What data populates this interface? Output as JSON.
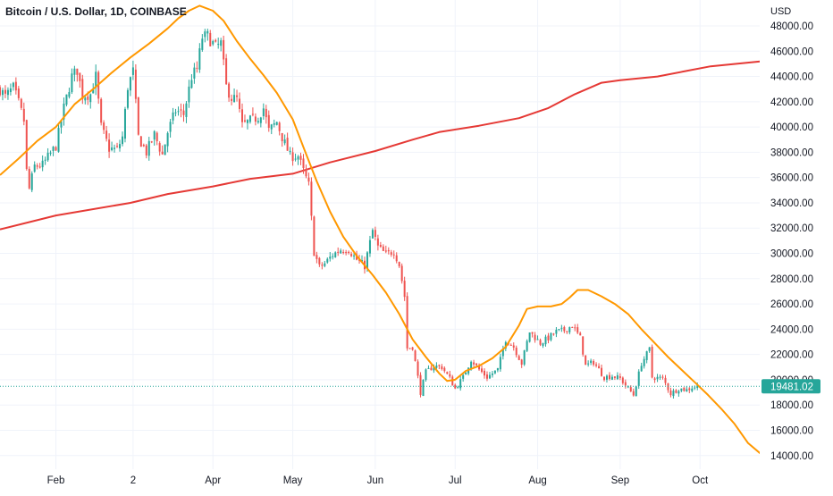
{
  "header": {
    "symbol_line": "Bitcoin / U.S. Dollar, 1D, COINBASE"
  },
  "price_axis": {
    "currency_label": "USD",
    "last_price_label": "19481.02"
  },
  "colors": {
    "up": "#26a69a",
    "down": "#ef5350",
    "ma_fast": "#ff9800",
    "ma_slow": "#e53935",
    "last_price_bg": "#26a69a",
    "grid": "#f0f3fa",
    "text": "#131722"
  },
  "chart_data": {
    "type": "candlestick",
    "symbol": "BTCUSD",
    "interval": "1D",
    "exchange": "COINBASE",
    "x_range": [
      "2022-01-11",
      "2022-10-24"
    ],
    "y_range": [
      13000,
      49500
    ],
    "last_price": 19481.02,
    "y_ticks": [
      14000,
      16000,
      18000,
      20000,
      22000,
      24000,
      26000,
      28000,
      30000,
      32000,
      34000,
      36000,
      38000,
      40000,
      42000,
      44000,
      46000,
      48000
    ],
    "x_ticks": [
      {
        "label": "Feb",
        "date": "2022-02-01"
      },
      {
        "label": "2",
        "date": "2022-03-02"
      },
      {
        "label": "Apr",
        "date": "2022-04-01"
      },
      {
        "label": "May",
        "date": "2022-05-01"
      },
      {
        "label": "Jun",
        "date": "2022-06-01"
      },
      {
        "label": "Jul",
        "date": "2022-07-01"
      },
      {
        "label": "Aug",
        "date": "2022-08-01"
      },
      {
        "label": "Sep",
        "date": "2022-09-01"
      },
      {
        "label": "Oct",
        "date": "2022-10-01"
      }
    ],
    "close_path": [
      [
        "2022-01-11",
        43000
      ],
      [
        "2022-01-13",
        42400
      ],
      [
        "2022-01-16",
        43100
      ],
      [
        "2022-01-18",
        41900
      ],
      [
        "2022-01-20",
        40500
      ],
      [
        "2022-01-21",
        36500
      ],
      [
        "2022-01-22",
        35100
      ],
      [
        "2022-01-24",
        36900
      ],
      [
        "2022-01-27",
        37000
      ],
      [
        "2022-01-30",
        37900
      ],
      [
        "2022-02-01",
        38500
      ],
      [
        "2022-02-04",
        41500
      ],
      [
        "2022-02-07",
        44000
      ],
      [
        "2022-02-09",
        44500
      ],
      [
        "2022-02-11",
        42500
      ],
      [
        "2022-02-14",
        42600
      ],
      [
        "2022-02-16",
        44000
      ],
      [
        "2022-02-18",
        40000
      ],
      [
        "2022-02-21",
        38300
      ],
      [
        "2022-02-24",
        38200
      ],
      [
        "2022-02-26",
        39200
      ],
      [
        "2022-02-28",
        43200
      ],
      [
        "2022-03-02",
        44400
      ],
      [
        "2022-03-04",
        39200
      ],
      [
        "2022-03-07",
        38000
      ],
      [
        "2022-03-10",
        39400
      ],
      [
        "2022-03-13",
        37800
      ],
      [
        "2022-03-15",
        39600
      ],
      [
        "2022-03-18",
        41300
      ],
      [
        "2022-03-21",
        41000
      ],
      [
        "2022-03-24",
        44000
      ],
      [
        "2022-03-26",
        44600
      ],
      [
        "2022-03-28",
        47100
      ],
      [
        "2022-03-30",
        47200
      ],
      [
        "2022-04-02",
        46300
      ],
      [
        "2022-04-04",
        46600
      ],
      [
        "2022-04-06",
        43200
      ],
      [
        "2022-04-08",
        42300
      ],
      [
        "2022-04-10",
        42200
      ],
      [
        "2022-04-12",
        40100
      ],
      [
        "2022-04-15",
        40500
      ],
      [
        "2022-04-18",
        40800
      ],
      [
        "2022-04-20",
        41500
      ],
      [
        "2022-04-22",
        39700
      ],
      [
        "2022-04-25",
        40400
      ],
      [
        "2022-04-27",
        39200
      ],
      [
        "2022-04-30",
        37700
      ],
      [
        "2022-05-03",
        37700
      ],
      [
        "2022-05-05",
        36500
      ],
      [
        "2022-05-07",
        35400
      ],
      [
        "2022-05-09",
        30100
      ],
      [
        "2022-05-11",
        28900
      ],
      [
        "2022-05-13",
        29200
      ],
      [
        "2022-05-16",
        29900
      ],
      [
        "2022-05-19",
        30300
      ],
      [
        "2022-05-22",
        30300
      ],
      [
        "2022-05-25",
        29500
      ],
      [
        "2022-05-28",
        29000
      ],
      [
        "2022-05-31",
        31800
      ],
      [
        "2022-06-02",
        30500
      ],
      [
        "2022-06-05",
        29900
      ],
      [
        "2022-06-08",
        30200
      ],
      [
        "2022-06-10",
        29100
      ],
      [
        "2022-06-12",
        26600
      ],
      [
        "2022-06-13",
        22500
      ],
      [
        "2022-06-15",
        22600
      ],
      [
        "2022-06-18",
        19000
      ],
      [
        "2022-06-20",
        20600
      ],
      [
        "2022-06-23",
        21100
      ],
      [
        "2022-06-26",
        21000
      ],
      [
        "2022-06-29",
        20100
      ],
      [
        "2022-07-01",
        19300
      ],
      [
        "2022-07-04",
        20200
      ],
      [
        "2022-07-07",
        21600
      ],
      [
        "2022-07-10",
        20800
      ],
      [
        "2022-07-13",
        20200
      ],
      [
        "2022-07-17",
        20800
      ],
      [
        "2022-07-20",
        23200
      ],
      [
        "2022-07-23",
        22600
      ],
      [
        "2022-07-26",
        21300
      ],
      [
        "2022-07-29",
        23800
      ],
      [
        "2022-08-02",
        22900
      ],
      [
        "2022-08-05",
        23300
      ],
      [
        "2022-08-08",
        23800
      ],
      [
        "2022-08-11",
        23900
      ],
      [
        "2022-08-14",
        24300
      ],
      [
        "2022-08-17",
        23300
      ],
      [
        "2022-08-19",
        21100
      ],
      [
        "2022-08-22",
        21400
      ],
      [
        "2022-08-26",
        20200
      ],
      [
        "2022-08-29",
        20300
      ],
      [
        "2022-09-01",
        20100
      ],
      [
        "2022-09-06",
        18800
      ],
      [
        "2022-09-09",
        21300
      ],
      [
        "2022-09-12",
        22400
      ],
      [
        "2022-09-13",
        20200
      ],
      [
        "2022-09-17",
        20100
      ],
      [
        "2022-09-20",
        18900
      ],
      [
        "2022-09-23",
        19300
      ],
      [
        "2022-09-26",
        19200
      ],
      [
        "2022-09-28",
        19400
      ],
      [
        "2022-09-30",
        19481
      ]
    ],
    "series": [
      {
        "type": "line",
        "points": [
          [
            "2022-01-11",
            36200
          ],
          [
            "2022-01-18",
            37500
          ],
          [
            "2022-01-25",
            38900
          ],
          [
            "2022-02-01",
            40000
          ],
          [
            "2022-02-08",
            41800
          ],
          [
            "2022-02-15",
            43000
          ],
          [
            "2022-02-22",
            44300
          ],
          [
            "2022-03-01",
            45500
          ],
          [
            "2022-03-08",
            46600
          ],
          [
            "2022-03-15",
            47800
          ],
          [
            "2022-03-19",
            48600
          ],
          [
            "2022-03-23",
            49200
          ],
          [
            "2022-03-27",
            49600
          ],
          [
            "2022-04-01",
            49200
          ],
          [
            "2022-04-05",
            48400
          ],
          [
            "2022-04-10",
            46800
          ],
          [
            "2022-04-15",
            45400
          ],
          [
            "2022-04-20",
            44100
          ],
          [
            "2022-04-25",
            42700
          ],
          [
            "2022-05-01",
            40600
          ],
          [
            "2022-05-05",
            38400
          ],
          [
            "2022-05-10",
            35700
          ],
          [
            "2022-05-15",
            33300
          ],
          [
            "2022-05-20",
            31300
          ],
          [
            "2022-05-25",
            29800
          ],
          [
            "2022-05-31",
            28300
          ],
          [
            "2022-06-05",
            26900
          ],
          [
            "2022-06-10",
            25200
          ],
          [
            "2022-06-15",
            23200
          ],
          [
            "2022-06-20",
            21800
          ],
          [
            "2022-06-25",
            20500
          ],
          [
            "2022-06-28",
            19900
          ],
          [
            "2022-07-01",
            20000
          ],
          [
            "2022-07-05",
            20700
          ],
          [
            "2022-07-10",
            21100
          ],
          [
            "2022-07-15",
            21700
          ],
          [
            "2022-07-20",
            22600
          ],
          [
            "2022-07-25",
            24300
          ],
          [
            "2022-07-28",
            25600
          ],
          [
            "2022-08-01",
            25800
          ],
          [
            "2022-08-06",
            25800
          ],
          [
            "2022-08-10",
            26000
          ],
          [
            "2022-08-13",
            26500
          ],
          [
            "2022-08-16",
            27100
          ],
          [
            "2022-08-20",
            27100
          ],
          [
            "2022-08-25",
            26600
          ],
          [
            "2022-08-30",
            26000
          ],
          [
            "2022-09-04",
            25200
          ],
          [
            "2022-09-09",
            24000
          ],
          [
            "2022-09-14",
            22900
          ],
          [
            "2022-09-19",
            21800
          ],
          [
            "2022-09-24",
            20800
          ],
          [
            "2022-09-29",
            19800
          ],
          [
            "2022-10-04",
            18800
          ],
          [
            "2022-10-09",
            17700
          ],
          [
            "2022-10-14",
            16500
          ],
          [
            "2022-10-19",
            15000
          ],
          [
            "2022-10-24",
            14100
          ]
        ]
      },
      {
        "type": "line",
        "points": [
          [
            "2022-01-11",
            31900
          ],
          [
            "2022-02-01",
            33000
          ],
          [
            "2022-03-01",
            34000
          ],
          [
            "2022-03-15",
            34700
          ],
          [
            "2022-04-01",
            35300
          ],
          [
            "2022-04-15",
            35900
          ],
          [
            "2022-05-01",
            36300
          ],
          [
            "2022-05-15",
            37200
          ],
          [
            "2022-06-01",
            38100
          ],
          [
            "2022-06-15",
            39000
          ],
          [
            "2022-06-25",
            39600
          ],
          [
            "2022-07-10",
            40100
          ],
          [
            "2022-07-25",
            40700
          ],
          [
            "2022-08-05",
            41500
          ],
          [
            "2022-08-15",
            42600
          ],
          [
            "2022-08-25",
            43500
          ],
          [
            "2022-09-01",
            43700
          ],
          [
            "2022-09-15",
            44000
          ],
          [
            "2022-09-25",
            44400
          ],
          [
            "2022-10-05",
            44800
          ],
          [
            "2022-10-24",
            45200
          ]
        ]
      }
    ]
  }
}
